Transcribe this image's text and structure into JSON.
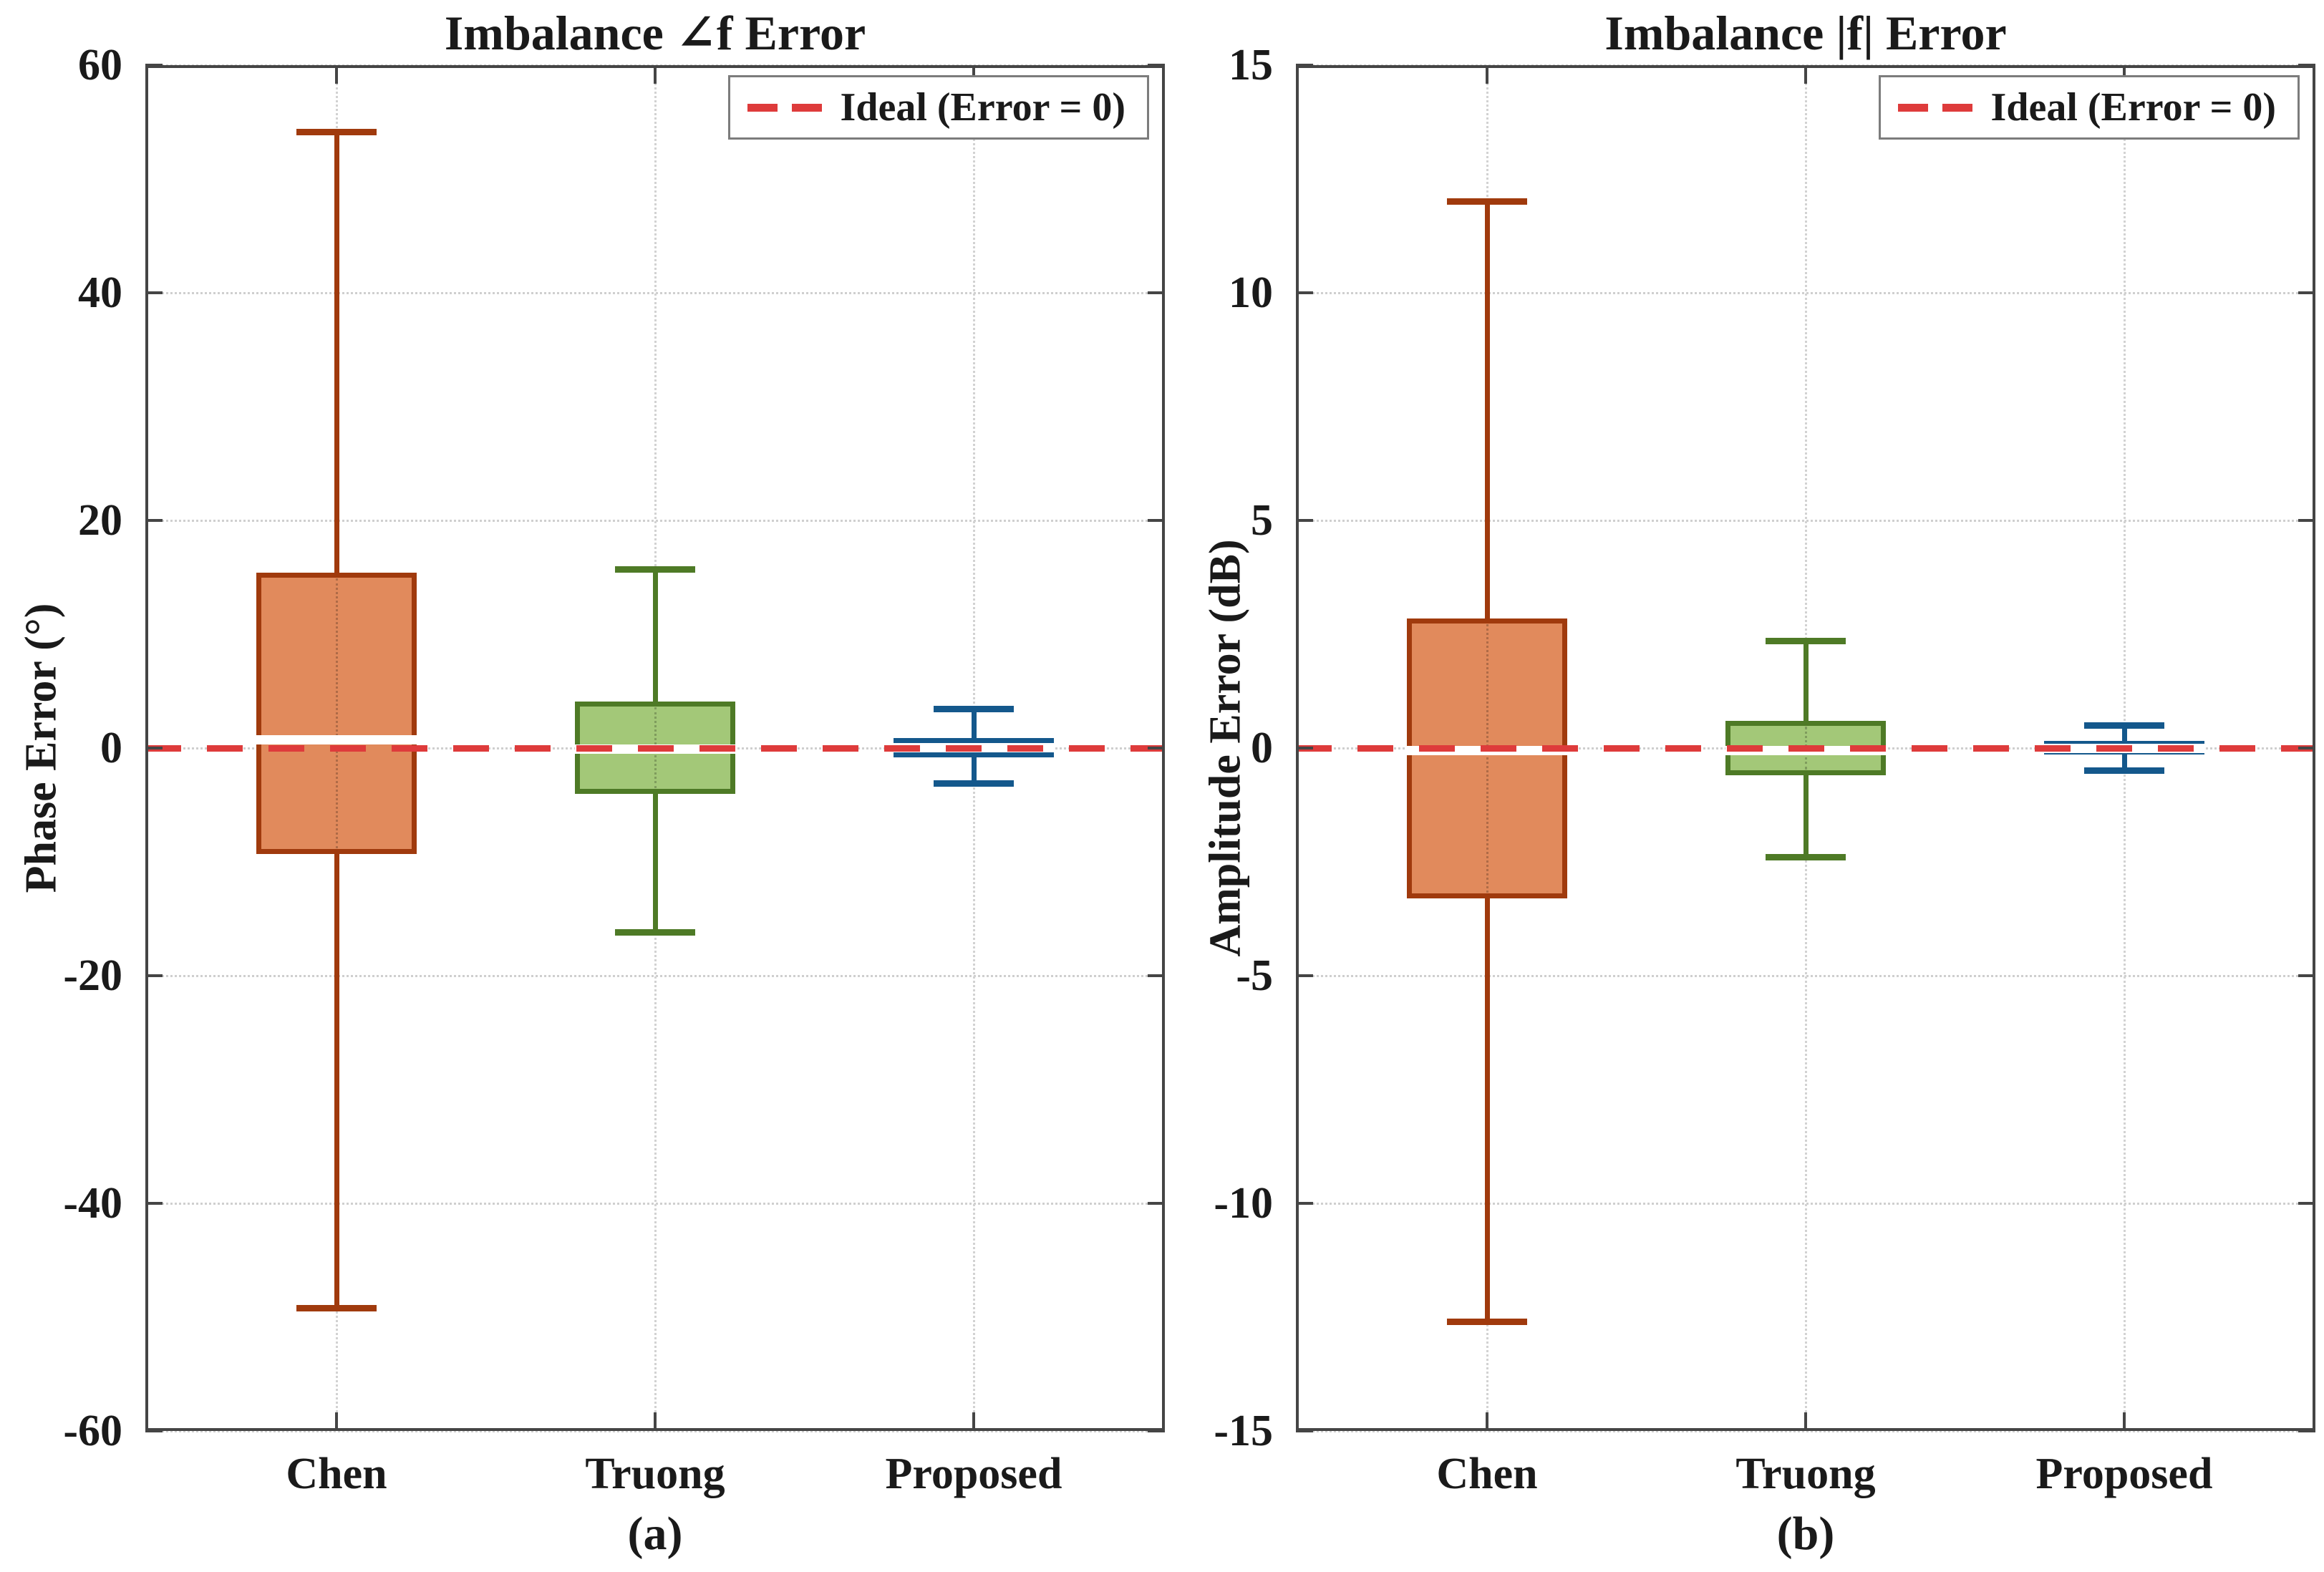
{
  "figure": {
    "legend_label": "Ideal (Error = 0)",
    "ideal_color": "#de3b3b",
    "grid_color": "#cfcfcf",
    "axis_color": "#454545",
    "median_color": "#ffffff"
  },
  "chart_data": [
    {
      "type": "box",
      "title": "Imbalance ∠f Error",
      "ylabel": "Phase Error (°)",
      "sublabel": "(a)",
      "legend": "Ideal (Error = 0)",
      "legend_position": "top-right",
      "grid": true,
      "ideal_line_y": 0,
      "ylim": [
        -60,
        60
      ],
      "yticks": [
        60,
        40,
        20,
        0,
        -20,
        -40,
        -60
      ],
      "categories": [
        "Chen",
        "Truong",
        "Proposed"
      ],
      "series": [
        {
          "name": "Chen",
          "fill": "#e18a5c",
          "edge": "#a03a0d",
          "whisker_low": -49.2,
          "q1": -9.3,
          "median": 0.7,
          "q3": 15.4,
          "whisker_high": 54.1
        },
        {
          "name": "Truong",
          "fill": "#a3c878",
          "edge": "#4e7a26",
          "whisker_low": -16.2,
          "q1": -4.0,
          "median": -0.1,
          "q3": 4.1,
          "whisker_high": 15.7
        },
        {
          "name": "Proposed",
          "fill": "#61a9d5",
          "edge": "#14588c",
          "whisker_low": -3.1,
          "q1": -0.8,
          "median": 0.05,
          "q3": 0.9,
          "whisker_high": 3.4
        }
      ]
    },
    {
      "type": "box",
      "title": "Imbalance |f| Error",
      "ylabel": "Amplitude Error (dB)",
      "sublabel": "(b)",
      "legend": "Ideal (Error = 0)",
      "legend_position": "top-right",
      "grid": true,
      "ideal_line_y": 0,
      "ylim": [
        -15,
        15
      ],
      "yticks": [
        15,
        10,
        5,
        0,
        -5,
        -10,
        -15
      ],
      "categories": [
        "Chen",
        "Truong",
        "Proposed"
      ],
      "series": [
        {
          "name": "Chen",
          "fill": "#e18a5c",
          "edge": "#a03a0d",
          "whisker_low": -12.6,
          "q1": -3.3,
          "median": -0.05,
          "q3": 2.85,
          "whisker_high": 12.0
        },
        {
          "name": "Truong",
          "fill": "#a3c878",
          "edge": "#4e7a26",
          "whisker_low": -2.4,
          "q1": -0.6,
          "median": -0.05,
          "q3": 0.6,
          "whisker_high": 2.35
        },
        {
          "name": "Proposed",
          "fill": "#61a9d5",
          "edge": "#14588c",
          "whisker_low": -0.5,
          "q1": -0.15,
          "median": 0.0,
          "q3": 0.16,
          "whisker_high": 0.5
        }
      ]
    }
  ]
}
